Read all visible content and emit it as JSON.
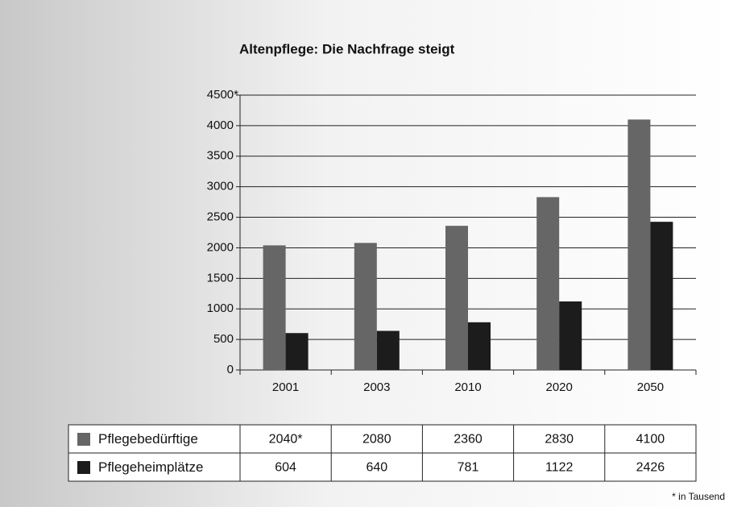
{
  "chart_data": {
    "type": "bar",
    "title": "Altenpflege: Die Nachfrage steigt",
    "categories": [
      "2001",
      "2003",
      "2010",
      "2020",
      "2050"
    ],
    "series": [
      {
        "name": "Pflegebedürftige",
        "color": "#666666",
        "values": [
          2040,
          2080,
          2360,
          2830,
          4100
        ],
        "value_labels": [
          "2040*",
          "2080",
          "2360",
          "2830",
          "4100"
        ]
      },
      {
        "name": "Pflegeheimplätze",
        "color": "#1c1c1c",
        "values": [
          604,
          640,
          781,
          1122,
          2426
        ]
      }
    ],
    "ylim": [
      0,
      4500
    ],
    "yticks": [
      0,
      500,
      1000,
      1500,
      2000,
      2500,
      3000,
      3500,
      4000,
      {
        "value": 4500,
        "label": "4500*"
      }
    ],
    "grid": true,
    "note": "* in Tausend"
  }
}
